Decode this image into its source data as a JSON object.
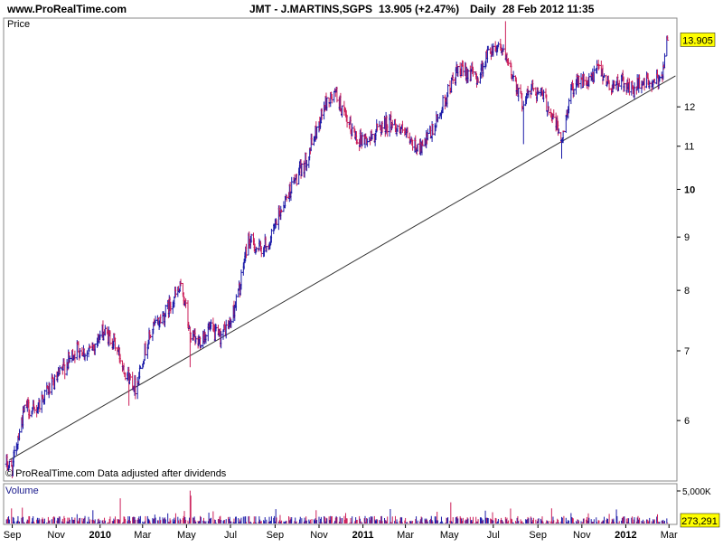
{
  "header": {
    "site": "www.ProRealTime.com",
    "instrument": "JMT - J.MARTINS,SGPS",
    "quote": "13.905 (+2.47%)",
    "period": "Daily",
    "datetime": "28 Feb 2012 11:35"
  },
  "price_panel": {
    "label": "Price",
    "footer": "© ProRealTime.com  Data adjusted after dividends",
    "last_price_label": "13.905"
  },
  "volume_panel": {
    "label": "Volume",
    "scale_label": "5,000K",
    "last_volume_label": "273,291"
  },
  "colors": {
    "up": "#1a1aa8",
    "down": "#cc1f5a",
    "trendline": "#333333",
    "badge": "#ffff00",
    "frame": "#8a8a8a"
  },
  "chart_data": [
    {
      "type": "ohlc",
      "title": "JMT - J.MARTINS,SGPS",
      "ylabel": "Price",
      "yscale": "log",
      "ylim": [
        5.25,
        14.6
      ],
      "yticks": [
        6,
        7,
        8,
        9,
        10,
        11,
        12
      ],
      "xlim": [
        "2009-08-20",
        "2012-03-12"
      ],
      "xticks": [
        {
          "date": "2009-09-01",
          "label": "Sep",
          "bold": false
        },
        {
          "date": "2009-11-01",
          "label": "Nov",
          "bold": false
        },
        {
          "date": "2010-01-01",
          "label": "2010",
          "bold": true
        },
        {
          "date": "2010-03-01",
          "label": "Mar",
          "bold": false
        },
        {
          "date": "2010-05-01",
          "label": "May",
          "bold": false
        },
        {
          "date": "2010-07-01",
          "label": "Jul",
          "bold": false
        },
        {
          "date": "2010-09-01",
          "label": "Sep",
          "bold": false
        },
        {
          "date": "2010-11-01",
          "label": "Nov",
          "bold": false
        },
        {
          "date": "2011-01-01",
          "label": "2011",
          "bold": true
        },
        {
          "date": "2011-03-01",
          "label": "Mar",
          "bold": false
        },
        {
          "date": "2011-05-01",
          "label": "May",
          "bold": false
        },
        {
          "date": "2011-07-01",
          "label": "Jul",
          "bold": false
        },
        {
          "date": "2011-09-01",
          "label": "Sep",
          "bold": false
        },
        {
          "date": "2011-11-01",
          "label": "Nov",
          "bold": false
        },
        {
          "date": "2012-01-01",
          "label": "2012",
          "bold": true
        },
        {
          "date": "2012-03-01",
          "label": "Mar",
          "bold": false
        }
      ],
      "last_price": 13.905,
      "trendline": [
        {
          "date": "2009-08-28",
          "price": 5.5
        },
        {
          "date": "2012-03-10",
          "price": 12.85
        }
      ],
      "closes_path": [
        [
          "2009-08-24",
          5.45
        ],
        [
          "2009-09-01",
          5.4
        ],
        [
          "2009-09-10",
          5.85
        ],
        [
          "2009-09-20",
          6.2
        ],
        [
          "2009-10-01",
          6.1
        ],
        [
          "2009-10-15",
          6.35
        ],
        [
          "2009-11-01",
          6.55
        ],
        [
          "2009-11-15",
          6.8
        ],
        [
          "2009-12-01",
          7.05
        ],
        [
          "2009-12-15",
          6.95
        ],
        [
          "2010-01-05",
          7.3
        ],
        [
          "2010-01-20",
          7.15
        ],
        [
          "2010-02-05",
          6.7
        ],
        [
          "2010-02-20",
          6.45
        ],
        [
          "2010-03-01",
          6.9
        ],
        [
          "2010-03-15",
          7.35
        ],
        [
          "2010-04-01",
          7.6
        ],
        [
          "2010-04-15",
          7.9
        ],
        [
          "2010-04-25",
          8.05
        ],
        [
          "2010-05-05",
          7.3
        ],
        [
          "2010-05-15",
          7.1
        ],
        [
          "2010-06-01",
          7.35
        ],
        [
          "2010-06-15",
          7.2
        ],
        [
          "2010-07-01",
          7.45
        ],
        [
          "2010-07-15",
          8.1
        ],
        [
          "2010-07-25",
          8.95
        ],
        [
          "2010-08-10",
          8.75
        ],
        [
          "2010-08-25",
          8.9
        ],
        [
          "2010-09-10",
          9.6
        ],
        [
          "2010-09-25",
          10.1
        ],
        [
          "2010-10-10",
          10.5
        ],
        [
          "2010-10-25",
          11.2
        ],
        [
          "2010-11-10",
          12.1
        ],
        [
          "2010-11-25",
          12.35
        ],
        [
          "2010-12-10",
          11.55
        ],
        [
          "2010-12-25",
          11.2
        ],
        [
          "2011-01-10",
          11.15
        ],
        [
          "2011-01-25",
          11.5
        ],
        [
          "2011-02-10",
          11.6
        ],
        [
          "2011-02-25",
          11.35
        ],
        [
          "2011-03-10",
          11.05
        ],
        [
          "2011-03-25",
          10.95
        ],
        [
          "2011-04-10",
          11.45
        ],
        [
          "2011-04-25",
          12.2
        ],
        [
          "2011-05-10",
          12.9
        ],
        [
          "2011-05-25",
          13.0
        ],
        [
          "2011-06-10",
          12.8
        ],
        [
          "2011-06-25",
          13.6
        ],
        [
          "2011-07-10",
          13.8
        ],
        [
          "2011-07-20",
          13.2
        ],
        [
          "2011-08-01",
          12.7
        ],
        [
          "2011-08-10",
          12.1
        ],
        [
          "2011-08-25",
          12.55
        ],
        [
          "2011-09-10",
          12.2
        ],
        [
          "2011-09-25",
          11.6
        ],
        [
          "2011-10-05",
          11.1
        ],
        [
          "2011-10-15",
          12.3
        ],
        [
          "2011-10-25",
          12.8
        ],
        [
          "2011-11-10",
          12.6
        ],
        [
          "2011-11-25",
          13.1
        ],
        [
          "2011-12-10",
          12.55
        ],
        [
          "2011-12-25",
          12.7
        ],
        [
          "2012-01-10",
          12.45
        ],
        [
          "2012-01-25",
          12.7
        ],
        [
          "2012-02-10",
          12.6
        ],
        [
          "2012-02-20",
          12.9
        ],
        [
          "2012-02-28",
          13.905
        ]
      ],
      "outliers": [
        {
          "date": "2010-05-06",
          "low": 6.75
        },
        {
          "date": "2010-02-10",
          "low": 6.2
        },
        {
          "date": "2011-07-18",
          "high": 14.5
        },
        {
          "date": "2011-08-12",
          "low": 11.05
        },
        {
          "date": "2011-10-04",
          "low": 10.7
        }
      ]
    },
    {
      "type": "bar",
      "title": "Volume",
      "unit": "K",
      "ylim": [
        0,
        5000
      ],
      "yticks": [
        {
          "value": 5000,
          "label": "5,000K"
        }
      ],
      "last_volume": 273.291,
      "typical_volume": 1200,
      "spikes": [
        {
          "date": "2010-01-29",
          "value": 3900
        },
        {
          "date": "2010-05-06",
          "value": 5050
        },
        {
          "date": "2010-05-07",
          "value": 4300
        },
        {
          "date": "2011-05-03",
          "value": 3300
        },
        {
          "date": "2011-09-20",
          "value": 2400
        },
        {
          "date": "2009-09-15",
          "value": 2500
        }
      ]
    }
  ]
}
